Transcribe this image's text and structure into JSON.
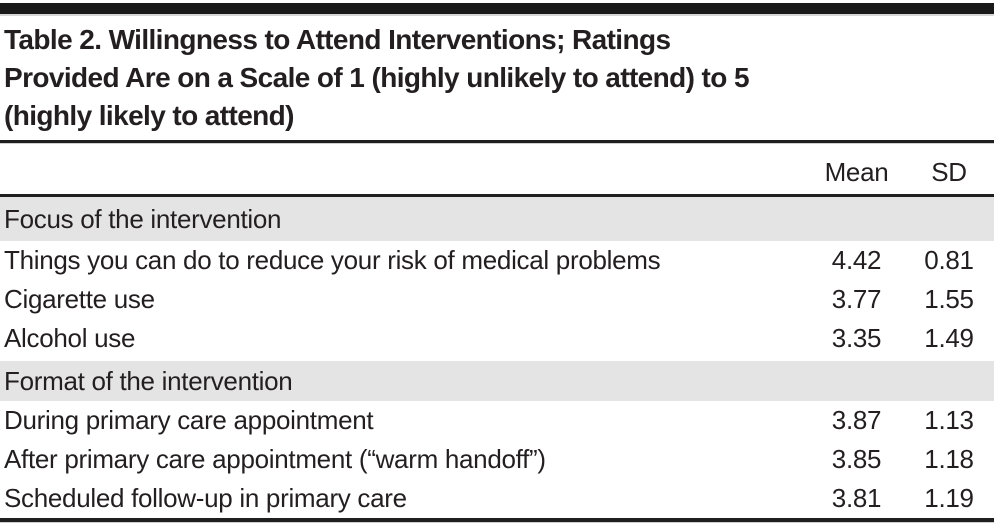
{
  "title": "Table 2. Willingness to Attend Interventions; Ratings Provided Are on a Scale of 1 (highly unlikely to attend) to 5 (highly likely to attend)",
  "title_lines": [
    "Table 2. Willingness to Attend Interventions; Ratings",
    "Provided Are on a Scale of 1 (highly unlikely to attend) to 5",
    "(highly likely to attend)"
  ],
  "columns": {
    "mean": "Mean",
    "sd": "SD"
  },
  "sections": [
    {
      "header": "Focus of the intervention",
      "rows": [
        {
          "label": "Things you can do to reduce your risk of medical problems",
          "mean": "4.42",
          "sd": "0.81"
        },
        {
          "label": "Cigarette use",
          "mean": "3.77",
          "sd": "1.55"
        },
        {
          "label": "Alcohol use",
          "mean": "3.35",
          "sd": "1.49"
        }
      ]
    },
    {
      "header": "Format of the intervention",
      "rows": [
        {
          "label": "During primary care appointment",
          "mean": "3.87",
          "sd": "1.13"
        },
        {
          "label": "After primary care appointment (“warm handoff”)",
          "mean": "3.85",
          "sd": "1.18"
        },
        {
          "label": "Scheduled follow-up in primary care",
          "mean": "3.81",
          "sd": "1.19"
        }
      ]
    }
  ],
  "rating_scale": {
    "min": 1,
    "max": 5,
    "min_label": "highly unlikely to attend",
    "max_label": "highly likely to attend"
  },
  "colors": {
    "text": "#231f20",
    "rule": "#1f1f1f",
    "section_background": "#e4e4e4",
    "top_bar": "#191919",
    "background": "#ffffff"
  }
}
